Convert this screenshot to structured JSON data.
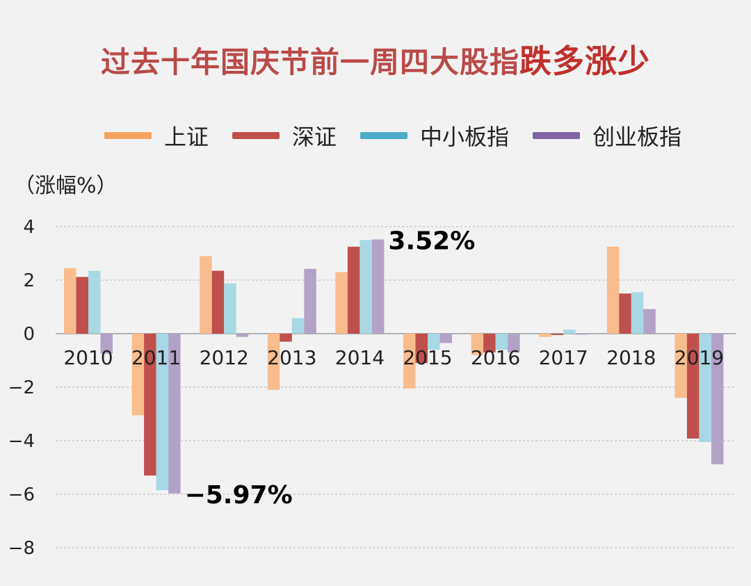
{
  "title": {
    "main": "过去十年国庆节前一周四大股指",
    "emphasis": "跌多涨少"
  },
  "unit_label": "（涨幅%）",
  "chart_data": {
    "type": "bar",
    "title": "过去十年国庆节前一周四大股指跌多涨少",
    "ylabel": "（涨幅%）",
    "ylim": [
      -8,
      4
    ],
    "yticks": [
      "4",
      "2",
      "0",
      "−2",
      "−4",
      "−6",
      "−8"
    ],
    "ytick_values": [
      4,
      2,
      0,
      -2,
      -4,
      -6,
      -8
    ],
    "grid": true,
    "legend_position": "top",
    "categories": [
      "2010",
      "2011",
      "2012",
      "2013",
      "2014",
      "2015",
      "2016",
      "2017",
      "2018",
      "2019"
    ],
    "series": [
      {
        "name": "上证",
        "color": "#f9bd8d",
        "legend_color": "#f4a460",
        "values": [
          2.45,
          -3.05,
          2.9,
          -2.1,
          2.3,
          -2.05,
          -0.8,
          -0.12,
          3.25,
          -2.4
        ]
      },
      {
        "name": "深证",
        "color": "#c0504d",
        "legend_color": "#c0504d",
        "values": [
          2.12,
          -5.3,
          2.35,
          -0.3,
          3.25,
          -1.1,
          -0.7,
          -0.05,
          1.5,
          -3.92
        ]
      },
      {
        "name": "中小板指",
        "color": "#a8d8e4",
        "legend_color": "#4bacc6",
        "values": [
          2.35,
          -5.85,
          1.88,
          0.58,
          3.5,
          -0.6,
          -0.6,
          0.15,
          1.55,
          -4.05
        ]
      },
      {
        "name": "创业板指",
        "color": "#b3a2c7",
        "legend_color": "#8064a2",
        "values": [
          -0.75,
          -5.97,
          -0.12,
          2.42,
          3.52,
          -0.35,
          -0.7,
          -0.03,
          0.92,
          -4.88
        ]
      }
    ],
    "annotations": [
      {
        "text": "3.52%",
        "category": "2014",
        "series": "创业板指",
        "value": 3.52
      },
      {
        "text": "−5.97%",
        "category": "2011",
        "series": "创业板指",
        "value": -5.97
      }
    ]
  }
}
